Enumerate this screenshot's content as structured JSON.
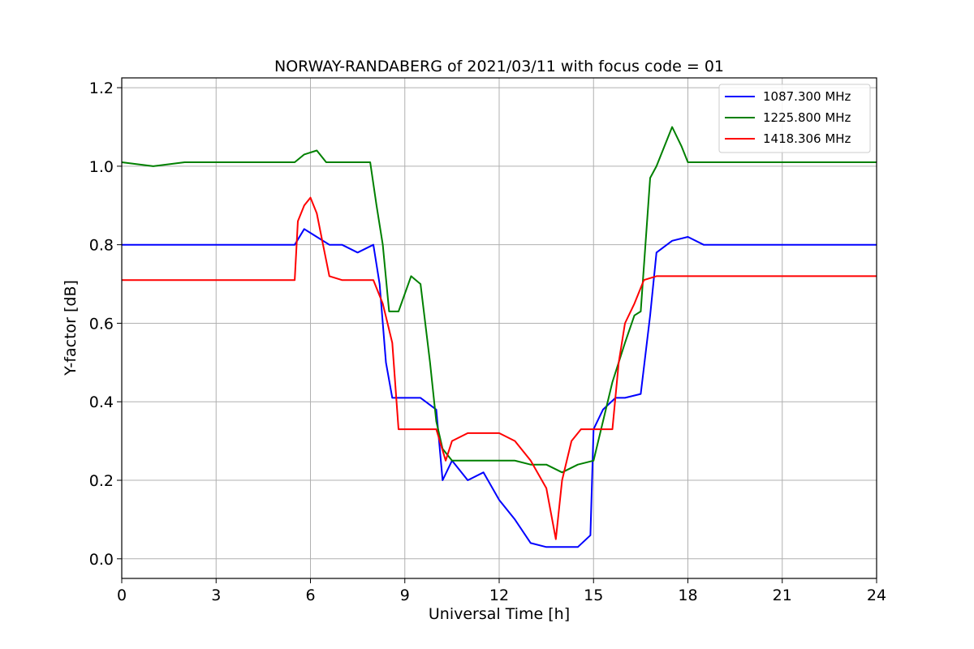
{
  "chart_data": {
    "type": "line",
    "title": "NORWAY-RANDABERG of 2021/03/11 with focus code = 01",
    "xlabel": "Universal Time [h]",
    "ylabel": "Y-factor [dB]",
    "xlim": [
      0,
      24
    ],
    "ylim": [
      -0.05,
      1.225
    ],
    "xticks": [
      0,
      3,
      6,
      9,
      12,
      15,
      18,
      21,
      24
    ],
    "yticks": [
      0.0,
      0.2,
      0.4,
      0.6,
      0.8,
      1.0,
      1.2
    ],
    "xtick_labels": [
      "0",
      "3",
      "6",
      "9",
      "12",
      "15",
      "18",
      "21",
      "24"
    ],
    "ytick_labels": [
      "0.0",
      "0.2",
      "0.4",
      "0.6",
      "0.8",
      "1.0",
      "1.2"
    ],
    "grid": true,
    "legend": "top-right",
    "series": [
      {
        "name": "1087.300 MHz",
        "color": "#0000ff",
        "x": [
          0,
          1,
          2,
          3,
          4,
          5,
          5.5,
          5.8,
          6.2,
          6.6,
          7,
          7.5,
          8,
          8.2,
          8.4,
          8.6,
          9,
          9.5,
          10,
          10.2,
          10.5,
          11,
          11.5,
          12,
          12.5,
          13,
          13.5,
          14,
          14.5,
          14.9,
          15,
          15.3,
          15.7,
          16,
          16.5,
          16.8,
          17,
          17.5,
          18,
          18.5,
          19,
          20,
          21,
          22,
          23,
          24
        ],
        "y": [
          0.8,
          0.8,
          0.8,
          0.8,
          0.8,
          0.8,
          0.8,
          0.84,
          0.82,
          0.8,
          0.8,
          0.78,
          0.8,
          0.7,
          0.5,
          0.41,
          0.41,
          0.41,
          0.38,
          0.2,
          0.25,
          0.2,
          0.22,
          0.15,
          0.1,
          0.04,
          0.03,
          0.03,
          0.03,
          0.06,
          0.33,
          0.38,
          0.41,
          0.41,
          0.42,
          0.62,
          0.78,
          0.81,
          0.82,
          0.8,
          0.8,
          0.8,
          0.8,
          0.8,
          0.8,
          0.8
        ]
      },
      {
        "name": "1225.800 MHz",
        "color": "#008000",
        "x": [
          0,
          1,
          2,
          3,
          4,
          5,
          5.5,
          5.8,
          6.2,
          6.5,
          7,
          7.5,
          7.9,
          8.1,
          8.3,
          8.5,
          8.8,
          9.2,
          9.5,
          9.8,
          10,
          10.2,
          10.5,
          11,
          11.5,
          12,
          12.5,
          13,
          13.5,
          14,
          14.5,
          15,
          15.3,
          15.6,
          16,
          16.3,
          16.5,
          16.8,
          17,
          17.5,
          17.8,
          18,
          18.5,
          19,
          20,
          21,
          22,
          23,
          24
        ],
        "y": [
          1.01,
          1.0,
          1.01,
          1.01,
          1.01,
          1.01,
          1.01,
          1.03,
          1.04,
          1.01,
          1.01,
          1.01,
          1.01,
          0.9,
          0.8,
          0.63,
          0.63,
          0.72,
          0.7,
          0.5,
          0.35,
          0.28,
          0.25,
          0.25,
          0.25,
          0.25,
          0.25,
          0.24,
          0.24,
          0.22,
          0.24,
          0.25,
          0.35,
          0.45,
          0.55,
          0.62,
          0.63,
          0.97,
          1.0,
          1.1,
          1.05,
          1.01,
          1.01,
          1.01,
          1.01,
          1.01,
          1.01,
          1.01,
          1.01
        ]
      },
      {
        "name": "1418.306 MHz",
        "color": "#ff0000",
        "x": [
          0,
          1,
          2,
          3,
          4,
          5,
          5.5,
          5.6,
          5.8,
          6,
          6.2,
          6.4,
          6.6,
          7,
          7.5,
          8,
          8.3,
          8.6,
          8.8,
          9,
          9.5,
          10,
          10.3,
          10.5,
          11,
          11.5,
          12,
          12.5,
          13,
          13.5,
          13.8,
          14,
          14.3,
          14.6,
          15,
          15.3,
          15.6,
          15.8,
          16,
          16.3,
          16.6,
          17,
          17.5,
          18,
          18.5,
          19,
          20,
          21,
          22,
          23,
          24
        ],
        "y": [
          0.71,
          0.71,
          0.71,
          0.71,
          0.71,
          0.71,
          0.71,
          0.86,
          0.9,
          0.92,
          0.88,
          0.8,
          0.72,
          0.71,
          0.71,
          0.71,
          0.65,
          0.55,
          0.33,
          0.33,
          0.33,
          0.33,
          0.25,
          0.3,
          0.32,
          0.32,
          0.32,
          0.3,
          0.25,
          0.18,
          0.05,
          0.2,
          0.3,
          0.33,
          0.33,
          0.33,
          0.33,
          0.5,
          0.6,
          0.65,
          0.71,
          0.72,
          0.72,
          0.72,
          0.72,
          0.72,
          0.72,
          0.72,
          0.72,
          0.72,
          0.72
        ]
      }
    ]
  }
}
